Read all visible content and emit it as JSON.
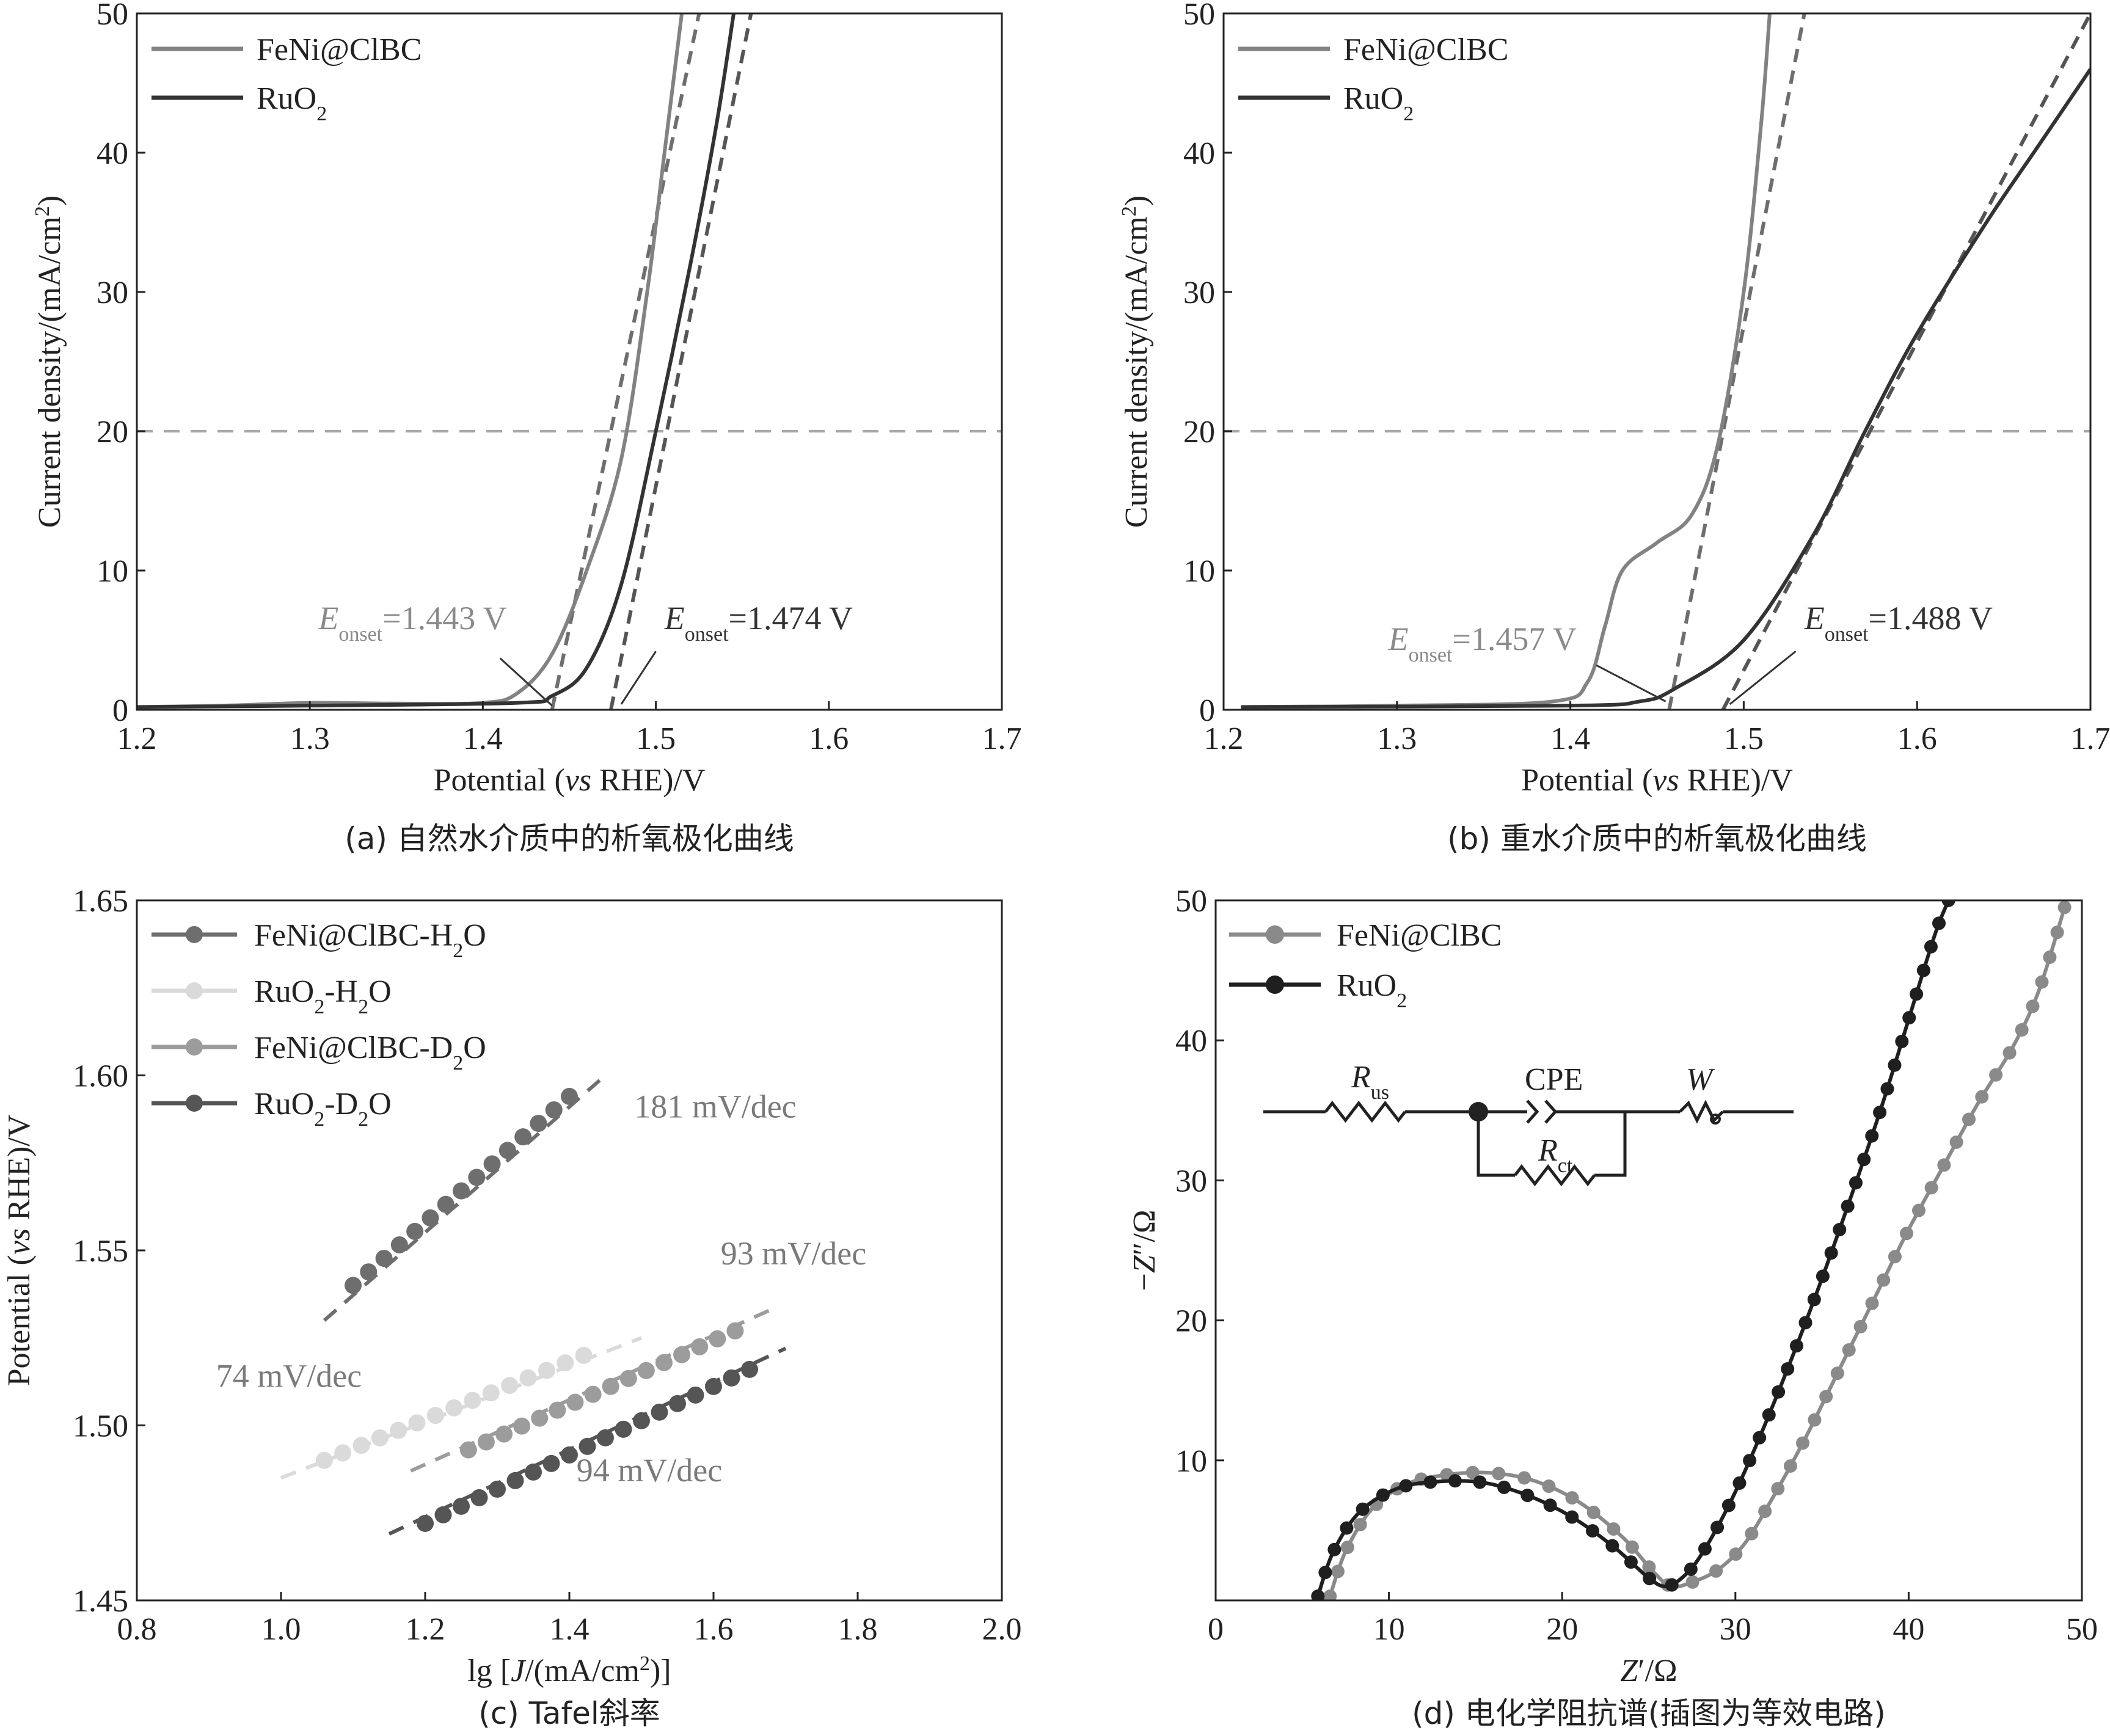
{
  "chart_data": [
    {
      "id": "a",
      "type": "line",
      "caption": "(a) 自然水介质中的析氧极化曲线",
      "xlabel": "Potential (vs RHE)/V",
      "ylabel": "Current density/(mA/cm²)",
      "xlim": [
        1.2,
        1.7
      ],
      "ylim": [
        0,
        50
      ],
      "xticks": [
        "1.2",
        "1.3",
        "1.4",
        "1.5",
        "1.6",
        "1.7"
      ],
      "yticks": [
        "0",
        "10",
        "20",
        "30",
        "40",
        "50"
      ],
      "legend_position": "top-left",
      "reference_line": {
        "y": 20,
        "style": "dashed"
      },
      "series": [
        {
          "name": "FeNi@ClBC",
          "color": "#828282",
          "points": [
            [
              1.2,
              0.2
            ],
            [
              1.25,
              0.3
            ],
            [
              1.3,
              0.5
            ],
            [
              1.35,
              0.45
            ],
            [
              1.4,
              0.5
            ],
            [
              1.42,
              1.2
            ],
            [
              1.44,
              4
            ],
            [
              1.46,
              10
            ],
            [
              1.48,
              18
            ],
            [
              1.495,
              30
            ],
            [
              1.505,
              40
            ],
            [
              1.515,
              50
            ]
          ]
        },
        {
          "name": "RuO2",
          "color": "#333333",
          "points": [
            [
              1.2,
              0.2
            ],
            [
              1.3,
              0.3
            ],
            [
              1.42,
              0.5
            ],
            [
              1.44,
              1
            ],
            [
              1.46,
              3
            ],
            [
              1.48,
              9
            ],
            [
              1.5,
              20
            ],
            [
              1.52,
              32
            ],
            [
              1.535,
              42
            ],
            [
              1.545,
              50
            ]
          ]
        }
      ],
      "tangents": [
        {
          "color": "#6e6e6e",
          "from": [
            1.44,
            0
          ],
          "to": [
            1.525,
            50
          ]
        },
        {
          "color": "#555555",
          "from": [
            1.474,
            0
          ],
          "to": [
            1.555,
            50
          ]
        }
      ],
      "annotations": [
        {
          "symbol": "E",
          "sub": "onset",
          "text": "=1.443 V",
          "color": "#8a8a8a",
          "anchor": [
            1.305,
            5.8
          ],
          "target": [
            1.44,
            0.3
          ],
          "from": [
            1.41,
            3.7
          ]
        },
        {
          "symbol": "E",
          "sub": "onset",
          "text": "=1.474 V",
          "color": "#333333",
          "anchor": [
            1.505,
            5.8
          ],
          "target": [
            1.48,
            0.4
          ],
          "from": [
            1.5,
            4.2
          ]
        }
      ]
    },
    {
      "id": "b",
      "type": "line",
      "caption": "(b) 重水介质中的析氧极化曲线",
      "xlabel": "Potential (vs RHE)/V",
      "ylabel": "Current density/(mA/cm²)",
      "xlim": [
        1.2,
        1.7
      ],
      "ylim": [
        0,
        50
      ],
      "xticks": [
        "1.2",
        "1.3",
        "1.4",
        "1.5",
        "1.6",
        "1.7"
      ],
      "yticks": [
        "0",
        "10",
        "20",
        "30",
        "40",
        "50"
      ],
      "legend_position": "top-left",
      "reference_line": {
        "y": 20,
        "style": "dashed"
      },
      "series": [
        {
          "name": "FeNi@ClBC",
          "color": "#828282",
          "points": [
            [
              1.21,
              0.2
            ],
            [
              1.3,
              0.3
            ],
            [
              1.39,
              0.6
            ],
            [
              1.41,
              2
            ],
            [
              1.42,
              6
            ],
            [
              1.43,
              10
            ],
            [
              1.45,
              12
            ],
            [
              1.47,
              14
            ],
            [
              1.485,
              19
            ],
            [
              1.5,
              30
            ],
            [
              1.51,
              42
            ],
            [
              1.515,
              50
            ]
          ]
        },
        {
          "name": "RuO2",
          "color": "#333333",
          "points": [
            [
              1.21,
              0.2
            ],
            [
              1.4,
              0.3
            ],
            [
              1.44,
              0.6
            ],
            [
              1.46,
              1.5
            ],
            [
              1.5,
              5
            ],
            [
              1.54,
              12.5
            ],
            [
              1.57,
              20
            ],
            [
              1.6,
              27
            ],
            [
              1.64,
              35
            ],
            [
              1.67,
              40.5
            ],
            [
              1.7,
              46
            ]
          ]
        }
      ],
      "tangents": [
        {
          "color": "#6e6e6e",
          "from": [
            1.457,
            0
          ],
          "to": [
            1.535,
            50
          ]
        },
        {
          "color": "#555555",
          "from": [
            1.488,
            0
          ],
          "to": [
            1.7,
            50
          ]
        }
      ],
      "annotations": [
        {
          "symbol": "E",
          "sub": "onset",
          "text": "=1.457 V",
          "color": "#8a8a8a",
          "anchor": [
            1.295,
            4.3
          ],
          "target": [
            1.455,
            0.6
          ],
          "from": [
            1.415,
            3.2
          ]
        },
        {
          "symbol": "E",
          "sub": "onset",
          "text": "=1.488 V",
          "color": "#333333",
          "anchor": [
            1.535,
            5.8
          ],
          "target": [
            1.492,
            0.4
          ],
          "from": [
            1.53,
            4.2
          ]
        }
      ]
    },
    {
      "id": "c",
      "type": "scatter",
      "caption": "(c) Tafel斜率",
      "xlabel": "lg [J/(mA/cm²)]",
      "ylabel": "Potential (vs RHE)/V",
      "xlim": [
        0.8,
        2.0
      ],
      "ylim": [
        1.45,
        1.65
      ],
      "xticks": [
        "0.8",
        "1.0",
        "1.2",
        "1.4",
        "1.6",
        "1.8",
        "2.0"
      ],
      "yticks": [
        "1.45",
        "1.50",
        "1.55",
        "1.60",
        "1.65"
      ],
      "legend_position": "top-left",
      "series": [
        {
          "name": "FeNi@ClBC-H₂O",
          "color": "#6e6e6e",
          "x_start": 1.1,
          "x_end": 1.4,
          "n": 15,
          "fit": [
            1.06,
            1.53,
            1.45,
            1.6
          ]
        },
        {
          "name": "RuO₂-H₂O",
          "color": "#dadada",
          "x_start": 1.06,
          "x_end": 1.42,
          "n": 15,
          "fit": [
            1.0,
            1.485,
            1.5,
            1.525
          ]
        },
        {
          "name": "FeNi@ClBC-D₂O",
          "color": "#9c9c9c",
          "x_start": 1.26,
          "x_end": 1.63,
          "n": 16,
          "fit": [
            1.18,
            1.487,
            1.69,
            1.534
          ]
        },
        {
          "name": "RuO₂-D₂O",
          "color": "#555555",
          "x_start": 1.2,
          "x_end": 1.65,
          "n": 19,
          "fit": [
            1.15,
            1.469,
            1.7,
            1.522
          ]
        }
      ],
      "series_endpoints_y": [
        [
          1.54,
          1.594
        ],
        [
          1.49,
          1.52
        ],
        [
          1.493,
          1.527
        ],
        [
          1.472,
          1.516
        ]
      ],
      "annotations": [
        {
          "text": "181 mV/dec",
          "color": "#7a7a7a",
          "anchor": [
            1.49,
            1.588
          ]
        },
        {
          "text": "93 mV/dec",
          "color": "#7a7a7a",
          "anchor": [
            1.61,
            1.546
          ]
        },
        {
          "text": "74 mV/dec",
          "color": "#7a7a7a",
          "anchor": [
            0.91,
            1.511
          ]
        },
        {
          "text": "94 mV/dec",
          "color": "#7a7a7a",
          "anchor": [
            1.41,
            1.484
          ]
        }
      ]
    },
    {
      "id": "d",
      "type": "scatter",
      "caption": "(d) 电化学阻抗谱(插图为等效电路)",
      "xlabel": "Z′/Ω",
      "ylabel": "−Z″/Ω",
      "xlim": [
        0,
        50
      ],
      "ylim": [
        0,
        50
      ],
      "xticks": [
        "0",
        "10",
        "20",
        "30",
        "40",
        "50"
      ],
      "yticks": [
        "10",
        "20",
        "30",
        "40",
        "50"
      ],
      "legend_position": "top-left",
      "series": [
        {
          "name": "FeNi@ClBC",
          "color": "#8a8a8a",
          "points": [
            [
              6.6,
              0.3
            ],
            [
              7.5,
              3.5
            ],
            [
              9,
              6.5
            ],
            [
              11,
              8.3
            ],
            [
              13.5,
              9.0
            ],
            [
              16,
              9.1
            ],
            [
              18.5,
              8.5
            ],
            [
              21,
              7.0
            ],
            [
              23.5,
              4.5
            ],
            [
              25.3,
              2.0
            ],
            [
              26.3,
              1.0
            ],
            [
              27.5,
              1.3
            ],
            [
              29,
              2.2
            ],
            [
              30.5,
              4
            ],
            [
              32,
              7
            ],
            [
              34,
              11.5
            ],
            [
              36,
              16.5
            ],
            [
              38,
              21.5
            ],
            [
              40,
              26.5
            ],
            [
              42,
              31
            ],
            [
              44,
              35.5
            ],
            [
              46,
              39.5
            ],
            [
              47.5,
              43.5
            ],
            [
              49,
              49.5
            ]
          ]
        },
        {
          "name": "RuO2",
          "color": "#1f1f1f",
          "points": [
            [
              5.9,
              0.3
            ],
            [
              6.8,
              3.5
            ],
            [
              8.3,
              6.3
            ],
            [
              10.5,
              8.0
            ],
            [
              13,
              8.5
            ],
            [
              15.5,
              8.4
            ],
            [
              18,
              7.5
            ],
            [
              20.5,
              6.0
            ],
            [
              23,
              3.8
            ],
            [
              25,
              1.6
            ],
            [
              26,
              1.0
            ],
            [
              27,
              1.7
            ],
            [
              28,
              3.2
            ],
            [
              29.5,
              6.5
            ],
            [
              31,
              10.5
            ],
            [
              33,
              16.5
            ],
            [
              35,
              23
            ],
            [
              37,
              30
            ],
            [
              38.5,
              35.5
            ],
            [
              40,
              41.5
            ],
            [
              41.5,
              47.5
            ],
            [
              42.3,
              50
            ]
          ]
        }
      ],
      "inset": {
        "components": [
          "Rus",
          "CPE",
          "Rct",
          "W"
        ]
      }
    }
  ],
  "labels": {
    "feni_legend": "FeNi@ClBC",
    "ruo2_main": "RuO",
    "ruo2_sub": "2",
    "c_legend": [
      {
        "parts": [
          {
            "t": "FeNi@ClBC-H"
          },
          {
            "t": "2",
            "sub": true
          },
          {
            "t": "O"
          }
        ]
      },
      {
        "parts": [
          {
            "t": "RuO"
          },
          {
            "t": "2",
            "sub": true
          },
          {
            "t": "-H"
          },
          {
            "t": "2",
            "sub": true
          },
          {
            "t": "O"
          }
        ]
      },
      {
        "parts": [
          {
            "t": "FeNi@ClBC-D"
          },
          {
            "t": "2",
            "sub": true
          },
          {
            "t": "O"
          }
        ]
      },
      {
        "parts": [
          {
            "t": "RuO"
          },
          {
            "t": "2",
            "sub": true
          },
          {
            "t": "-D"
          },
          {
            "t": "2",
            "sub": true
          },
          {
            "t": "O"
          }
        ]
      }
    ],
    "ylabel_ab": {
      "main": "Current density/(mA/cm",
      "sup": "2",
      "close": ")"
    },
    "xlabel_ab": {
      "pre": "Potential (",
      "it": "vs",
      "post": " RHE)/V"
    },
    "ylabel_c": {
      "pre": "Potential (",
      "it": "vs",
      "post": " RHE)/V"
    },
    "xlabel_c": {
      "pre": "lg [",
      "it": "J",
      "mid": "/(mA/cm",
      "sup": "2",
      "post": ")]"
    },
    "xlabel_d": {
      "it": "Z",
      "post": "′/Ω"
    },
    "ylabel_d": {
      "pre": "−",
      "it": "Z",
      "post": "″/Ω"
    },
    "inset": {
      "rus": "R",
      "rus_sub": "us",
      "cpe": "CPE",
      "rct": "R",
      "rct_sub": "ct",
      "w": "W"
    }
  }
}
